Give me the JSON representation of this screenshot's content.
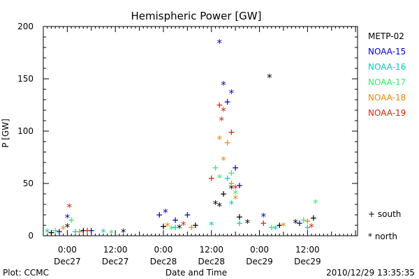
{
  "chart_data": {
    "type": "scatter",
    "title": "Hemispheric Power [GW]",
    "xlabel": "Date and Time",
    "ylabel": "P [GW]",
    "ylim": [
      0,
      200
    ],
    "yticks": [
      0,
      50,
      100,
      150,
      200
    ],
    "xlim": [
      "2010-12-26 18:00",
      "2010-12-30 00:30"
    ],
    "xticks": [
      {
        "t": "2010-12-27 00:00",
        "time": "0:00",
        "date": "Dec27"
      },
      {
        "t": "2010-12-27 12:00",
        "time": "12:00",
        "date": "Dec27"
      },
      {
        "t": "2010-12-28 00:00",
        "time": "0:00",
        "date": "Dec28"
      },
      {
        "t": "2010-12-28 12:00",
        "time": "12:00",
        "date": "Dec28"
      },
      {
        "t": "2010-12-29 00:00",
        "time": "0:00",
        "date": "Dec29"
      },
      {
        "t": "2010-12-29 12:00",
        "time": "12:00",
        "date": "Dec29"
      }
    ],
    "legend_position": "right",
    "marker_legend": [
      {
        "symbol": "+",
        "label": "south"
      },
      {
        "symbol": "*",
        "label": "north"
      }
    ],
    "series": [
      {
        "name": "METP-02",
        "color": "#000000",
        "points": [
          [
            "2010-12-26 20:00",
            3,
            "+"
          ],
          [
            "2010-12-27 00:00",
            8,
            "*"
          ],
          [
            "2010-12-27 04:00",
            5,
            "+"
          ],
          [
            "2010-12-27 14:00",
            3,
            "*"
          ],
          [
            "2010-12-28 00:00",
            9,
            "+"
          ],
          [
            "2010-12-28 04:00",
            7,
            "*"
          ],
          [
            "2010-12-28 08:00",
            10,
            "+"
          ],
          [
            "2010-12-28 13:00",
            30,
            "*"
          ],
          [
            "2010-12-28 14:00",
            28,
            "*"
          ],
          [
            "2010-12-28 15:00",
            40,
            "+"
          ],
          [
            "2010-12-28 17:00",
            45,
            "*"
          ],
          [
            "2010-12-28 19:00",
            18,
            "+"
          ],
          [
            "2010-12-28 21:00",
            12,
            "*"
          ],
          [
            "2010-12-29 02:30",
            151,
            "*"
          ],
          [
            "2010-12-29 05:00",
            10,
            "+"
          ],
          [
            "2010-12-29 09:00",
            12,
            "*"
          ],
          [
            "2010-12-29 13:30",
            17,
            "+"
          ]
        ]
      },
      {
        "name": "NOAA-15",
        "color": "#0000cc",
        "points": [
          [
            "2010-12-26 22:00",
            4,
            "+"
          ],
          [
            "2010-12-27 00:00",
            17,
            "*"
          ],
          [
            "2010-12-27 06:00",
            5,
            "+"
          ],
          [
            "2010-12-27 23:00",
            20,
            "+"
          ],
          [
            "2010-12-28 00:30",
            22,
            "*"
          ],
          [
            "2010-12-28 03:00",
            15,
            "+"
          ],
          [
            "2010-12-28 06:00",
            20,
            "+"
          ],
          [
            "2010-12-28 14:00",
            184,
            "*"
          ],
          [
            "2010-12-28 15:00",
            144,
            "*"
          ],
          [
            "2010-12-28 16:00",
            128,
            "+"
          ],
          [
            "2010-12-28 17:00",
            136,
            "*"
          ],
          [
            "2010-12-28 18:00",
            65,
            "+"
          ],
          [
            "2010-12-28 19:00",
            48,
            "+"
          ],
          [
            "2010-12-29 01:00",
            18,
            "*"
          ],
          [
            "2010-12-29 10:00",
            12,
            "+"
          ]
        ]
      },
      {
        "name": "NOAA-16",
        "color": "#00cccc",
        "points": [
          [
            "2010-12-26 19:00",
            3,
            "*"
          ],
          [
            "2010-12-27 02:00",
            4,
            "+"
          ],
          [
            "2010-12-27 09:00",
            3,
            "*"
          ],
          [
            "2010-12-28 03:00",
            8,
            "+"
          ],
          [
            "2010-12-28 12:00",
            10,
            "*"
          ],
          [
            "2010-12-28 16:00",
            55,
            "+"
          ],
          [
            "2010-12-28 17:00",
            30,
            "*"
          ],
          [
            "2010-12-28 19:00",
            12,
            "+"
          ],
          [
            "2010-12-29 04:00",
            6,
            "*"
          ],
          [
            "2010-12-29 12:00",
            8,
            "+"
          ]
        ]
      },
      {
        "name": "NOAA-17",
        "color": "#33ee66",
        "points": [
          [
            "2010-12-26 21:00",
            5,
            "+"
          ],
          [
            "2010-12-27 01:00",
            15,
            "+"
          ],
          [
            "2010-12-27 11:00",
            2,
            "*"
          ],
          [
            "2010-12-28 02:00",
            6,
            "*"
          ],
          [
            "2010-12-28 13:00",
            65,
            "+"
          ],
          [
            "2010-12-28 14:00",
            55,
            "*"
          ],
          [
            "2010-12-28 17:00",
            60,
            "+"
          ],
          [
            "2010-12-28 18:00",
            40,
            "*"
          ],
          [
            "2010-12-29 03:00",
            8,
            "+"
          ],
          [
            "2010-12-29 11:00",
            15,
            "+"
          ],
          [
            "2010-12-29 14:00",
            31,
            "*"
          ]
        ]
      },
      {
        "name": "NOAA-18",
        "color": "#ee8800",
        "points": [
          [
            "2010-12-26 23:00",
            6,
            "*"
          ],
          [
            "2010-12-27 03:00",
            4,
            "+"
          ],
          [
            "2010-12-28 01:00",
            9,
            "*"
          ],
          [
            "2010-12-28 07:00",
            8,
            "+"
          ],
          [
            "2010-12-28 14:00",
            92,
            "*"
          ],
          [
            "2010-12-28 15:00",
            72,
            "*"
          ],
          [
            "2010-12-28 16:00",
            89,
            "+"
          ],
          [
            "2010-12-28 17:00",
            50,
            "+"
          ],
          [
            "2010-12-28 18:00",
            35,
            "*"
          ],
          [
            "2010-12-29 06:00",
            9,
            "*"
          ],
          [
            "2010-12-29 12:00",
            14,
            "+"
          ]
        ]
      },
      {
        "name": "NOAA-19",
        "color": "#dd2200",
        "points": [
          [
            "2010-12-27 00:30",
            27,
            "*"
          ],
          [
            "2010-12-27 05:00",
            5,
            "+"
          ],
          [
            "2010-12-28 05:00",
            10,
            "*"
          ],
          [
            "2010-12-28 12:00",
            55,
            "+"
          ],
          [
            "2010-12-28 14:00",
            125,
            "+"
          ],
          [
            "2010-12-28 14:30",
            110,
            "*"
          ],
          [
            "2010-12-28 15:00",
            119,
            "*"
          ],
          [
            "2010-12-28 17:00",
            99,
            "+"
          ],
          [
            "2010-12-28 18:00",
            45,
            "*"
          ],
          [
            "2010-12-29 01:00",
            12,
            "+"
          ],
          [
            "2010-12-29 13:00",
            8,
            "*"
          ]
        ]
      }
    ]
  },
  "footer": {
    "left": "Plot: CCMC",
    "right": "2010/12/29 13:35:35"
  }
}
